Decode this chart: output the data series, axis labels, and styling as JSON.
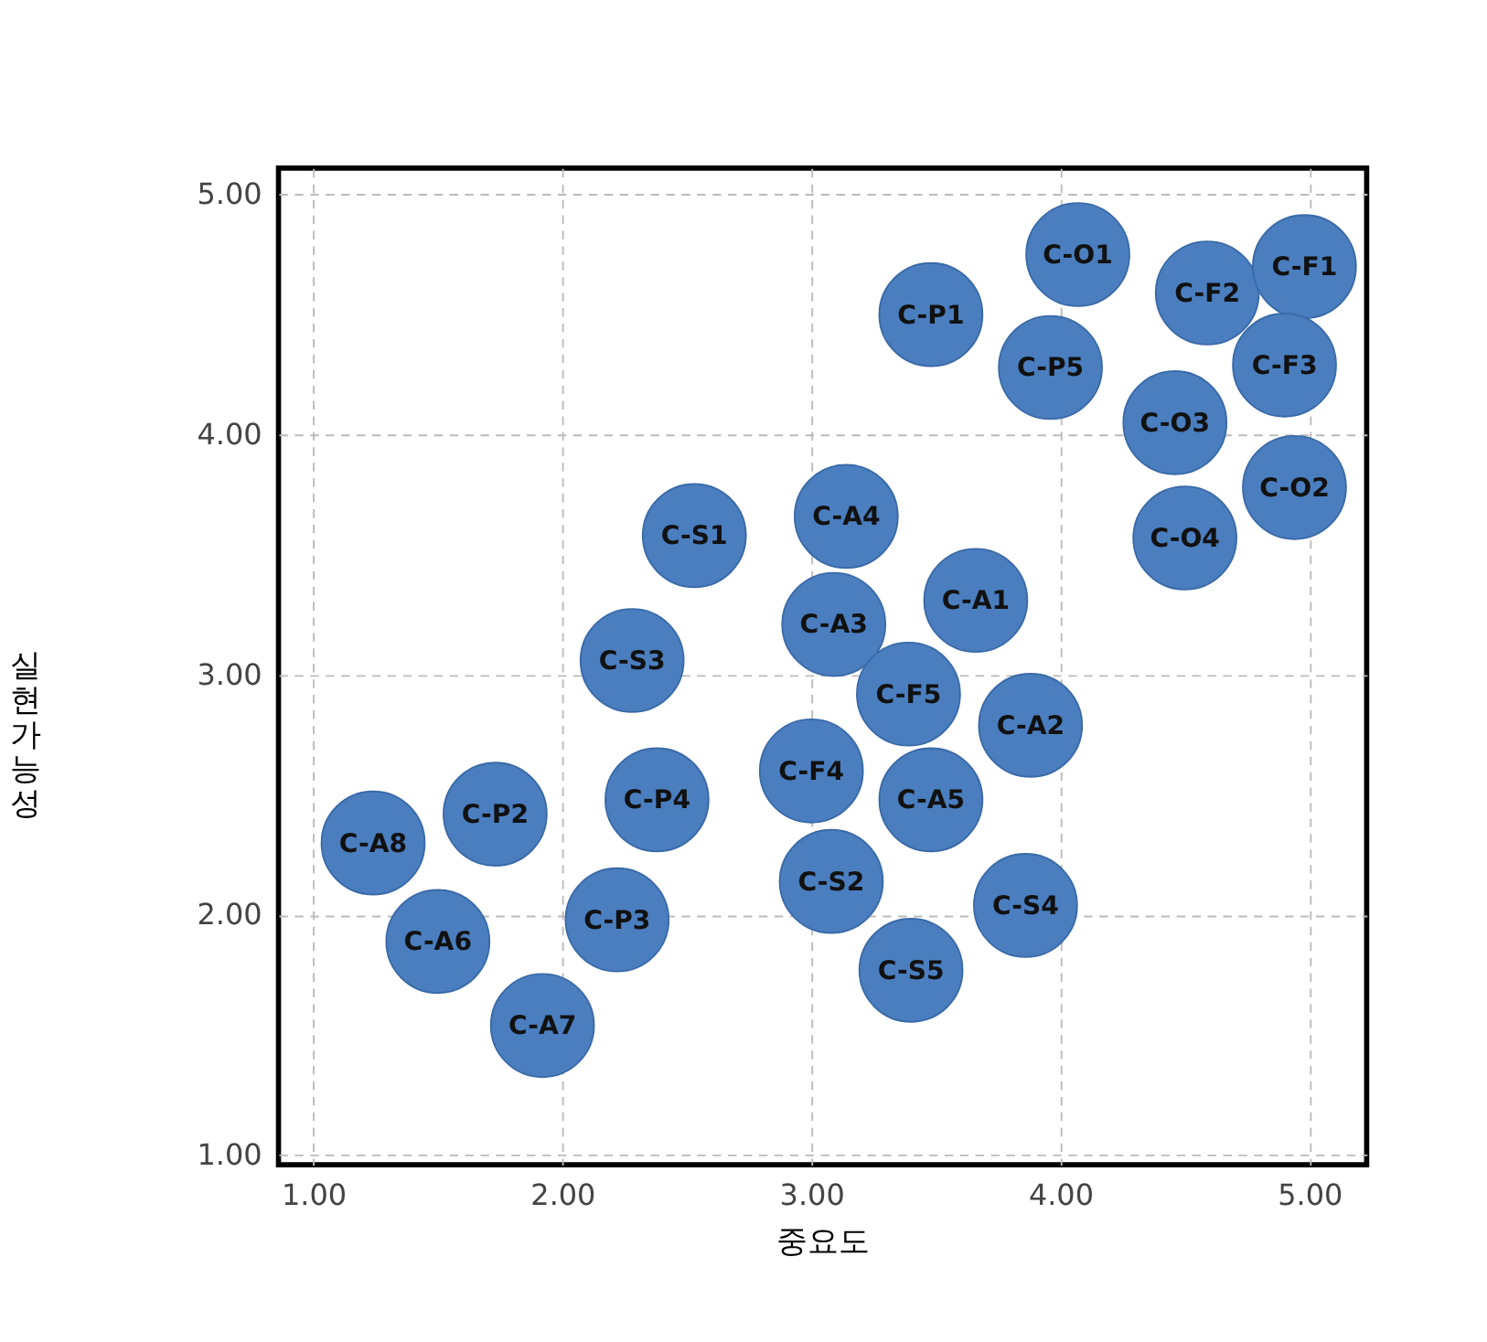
{
  "chart_data": {
    "type": "scatter",
    "xlabel": "중요도",
    "ylabel": "실현가능성",
    "xlim": [
      0.86,
      5.23
    ],
    "ylim": [
      0.96,
      5.11
    ],
    "xticks": [
      {
        "value": 1,
        "label": "1.00"
      },
      {
        "value": 2,
        "label": "2.00"
      },
      {
        "value": 3,
        "label": "3.00"
      },
      {
        "value": 4,
        "label": "4.00"
      },
      {
        "value": 5,
        "label": "5.00"
      }
    ],
    "yticks": [
      {
        "value": 1,
        "label": "1.00"
      },
      {
        "value": 2,
        "label": "2.00"
      },
      {
        "value": 3,
        "label": "3.00"
      },
      {
        "value": 4,
        "label": "4.00"
      },
      {
        "value": 5,
        "label": "5.00"
      }
    ],
    "grid": true,
    "marker": "circle",
    "series": [
      {
        "color": "#4a7ebf",
        "x": [
          4.07,
          4.59,
          4.98,
          3.48,
          3.96,
          4.9,
          4.46,
          4.94,
          4.5,
          2.53,
          3.14,
          3.66,
          3.09,
          2.28,
          3.39,
          3.88,
          3.0,
          3.48,
          2.38,
          1.24,
          1.73,
          3.08,
          3.86,
          1.5,
          2.22,
          3.4,
          1.92
        ],
        "values": [
          4.75,
          4.59,
          4.7,
          4.5,
          4.28,
          4.29,
          4.05,
          3.78,
          3.57,
          3.58,
          3.66,
          3.31,
          3.21,
          3.06,
          2.92,
          2.79,
          2.6,
          2.48,
          2.48,
          2.3,
          2.42,
          2.14,
          2.04,
          1.89,
          1.98,
          1.77,
          1.54
        ]
      }
    ],
    "annotations": [
      {
        "text": "C-O1",
        "x": 4.07,
        "y": 4.75
      },
      {
        "text": "C-F2",
        "x": 4.59,
        "y": 4.59
      },
      {
        "text": "C-F1",
        "x": 4.98,
        "y": 4.7
      },
      {
        "text": "C-P1",
        "x": 3.48,
        "y": 4.5
      },
      {
        "text": "C-P5",
        "x": 3.96,
        "y": 4.28
      },
      {
        "text": "C-F3",
        "x": 4.9,
        "y": 4.29
      },
      {
        "text": "C-O3",
        "x": 4.46,
        "y": 4.05
      },
      {
        "text": "C-O2",
        "x": 4.94,
        "y": 3.78
      },
      {
        "text": "C-O4",
        "x": 4.5,
        "y": 3.57
      },
      {
        "text": "C-S1",
        "x": 2.53,
        "y": 3.58
      },
      {
        "text": "C-A4",
        "x": 3.14,
        "y": 3.66
      },
      {
        "text": "C-A1",
        "x": 3.66,
        "y": 3.31
      },
      {
        "text": "C-A3",
        "x": 3.09,
        "y": 3.21
      },
      {
        "text": "C-S3",
        "x": 2.28,
        "y": 3.06
      },
      {
        "text": "C-F5",
        "x": 3.39,
        "y": 2.92
      },
      {
        "text": "C-A2",
        "x": 3.88,
        "y": 2.79
      },
      {
        "text": "C-F4",
        "x": 3.0,
        "y": 2.6
      },
      {
        "text": "C-A5",
        "x": 3.48,
        "y": 2.48
      },
      {
        "text": "C-P4",
        "x": 2.38,
        "y": 2.48
      },
      {
        "text": "C-A8",
        "x": 1.24,
        "y": 2.3
      },
      {
        "text": "C-P2",
        "x": 1.73,
        "y": 2.42
      },
      {
        "text": "C-S2",
        "x": 3.08,
        "y": 2.14
      },
      {
        "text": "C-S4",
        "x": 3.86,
        "y": 2.04
      },
      {
        "text": "C-A6",
        "x": 1.5,
        "y": 1.89
      },
      {
        "text": "C-P3",
        "x": 2.22,
        "y": 1.98
      },
      {
        "text": "C-S5",
        "x": 3.4,
        "y": 1.77
      },
      {
        "text": "C-A7",
        "x": 1.92,
        "y": 1.54
      }
    ]
  }
}
